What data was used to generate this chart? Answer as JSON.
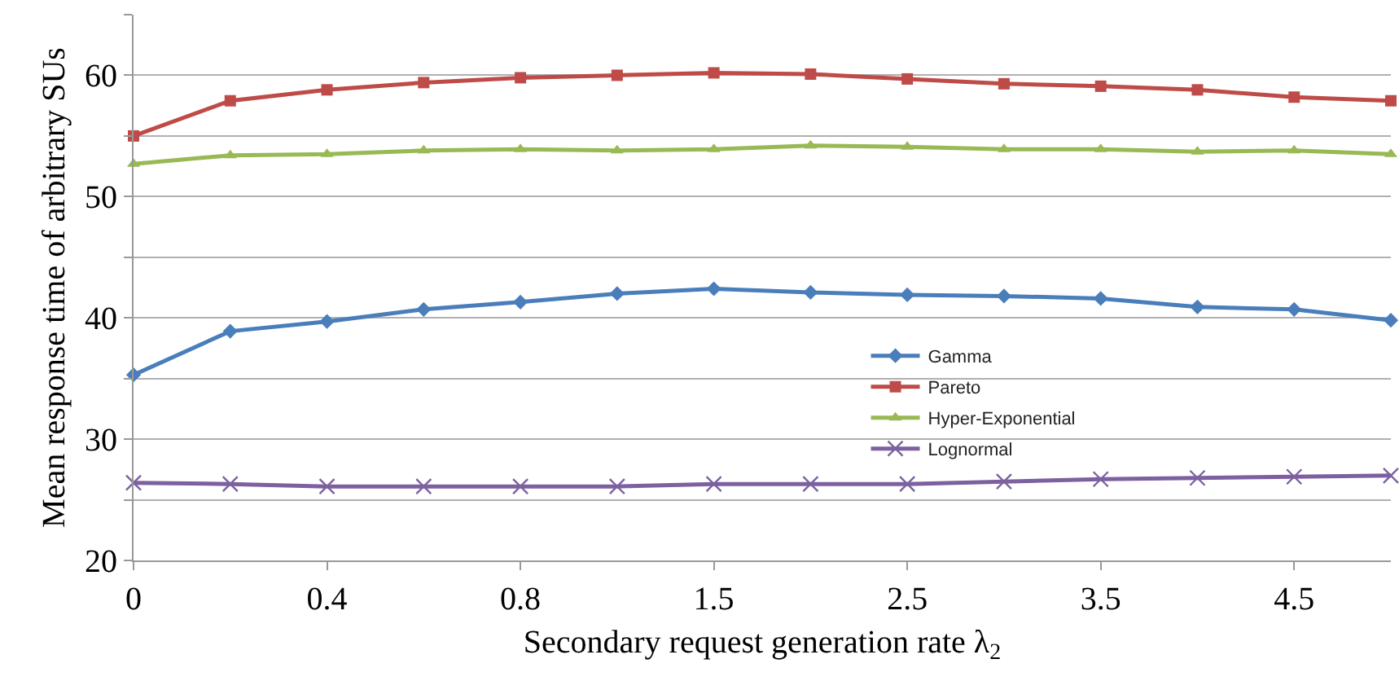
{
  "chart_data": {
    "type": "line",
    "xlabel": "Secondary request generation rate λ$_{2}$",
    "ylabel": "Mean response time of arbitrary SUs",
    "categories": [
      "0",
      null,
      "0.4",
      null,
      "0.8",
      null,
      "1.5",
      null,
      "2.5",
      null,
      "3.5",
      null,
      "4.5",
      null
    ],
    "series": [
      {
        "name": "Gamma",
        "color": "#4a7ebb",
        "marker": "diamond",
        "values": [
          35.3,
          38.9,
          39.7,
          40.7,
          41.3,
          42.0,
          42.4,
          42.1,
          41.9,
          41.8,
          41.6,
          40.9,
          40.7,
          39.8
        ]
      },
      {
        "name": "Pareto",
        "color": "#be4b48",
        "marker": "square",
        "values": [
          55.0,
          57.9,
          58.8,
          59.4,
          59.8,
          60.0,
          60.2,
          60.1,
          59.7,
          59.3,
          59.1,
          58.8,
          58.2,
          57.9
        ]
      },
      {
        "name": "Hyper-Exponential",
        "color": "#98b954",
        "marker": "triangle",
        "values": [
          52.7,
          53.4,
          53.5,
          53.8,
          53.9,
          53.8,
          53.9,
          54.2,
          54.1,
          53.9,
          53.9,
          53.7,
          53.8,
          53.5
        ]
      },
      {
        "name": "Lognormal",
        "color": "#7d60a0",
        "marker": "cross",
        "values": [
          26.4,
          26.3,
          26.1,
          26.1,
          26.1,
          26.1,
          26.3,
          26.3,
          26.3,
          26.5,
          26.7,
          26.8,
          26.9,
          27.0
        ]
      }
    ],
    "ylim": [
      20,
      65
    ],
    "yticks": [
      20,
      {
        "value": 25,
        "label": null
      },
      30,
      {
        "value": 35,
        "label": null
      },
      40,
      {
        "value": 45,
        "label": null
      },
      50,
      {
        "value": 55,
        "label": null
      },
      60,
      {
        "value": 65,
        "label": null
      }
    ],
    "grid": "y",
    "legend": "center",
    "line_style": "solid"
  }
}
